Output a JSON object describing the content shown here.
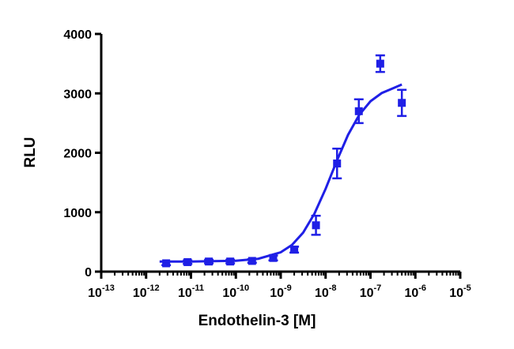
{
  "chart_data": {
    "type": "scatter",
    "xlabel": "Endothelin-3 [M]",
    "ylabel": "RLU",
    "log_x": true,
    "xlim": [
      1e-13,
      1e-05
    ],
    "xticks": [
      {
        "value": 1e-13,
        "label": "10-13"
      },
      {
        "value": 1e-12,
        "label": "10-12"
      },
      {
        "value": 1e-11,
        "label": "10-11"
      },
      {
        "value": 1e-10,
        "label": "10-10"
      },
      {
        "value": 1e-09,
        "label": "10-9"
      },
      {
        "value": 1e-08,
        "label": "10-8"
      },
      {
        "value": 1e-07,
        "label": "10-7"
      },
      {
        "value": 1e-06,
        "label": "10-6"
      },
      {
        "value": 1e-05,
        "label": "10-5"
      }
    ],
    "ylim": [
      0,
      4000
    ],
    "yticks": [
      0,
      1000,
      2000,
      3000,
      4000
    ],
    "series": [
      {
        "color": "#1f1fe6",
        "marker": "square",
        "x": [
          2.8e-12,
          8.4e-12,
          2.5e-11,
          7.5e-11,
          2.3e-10,
          6.8e-10,
          2e-09,
          6.1e-09,
          1.8e-08,
          5.5e-08,
          1.65e-07,
          5e-07
        ],
        "values": [
          140,
          160,
          170,
          170,
          180,
          230,
          370,
          780,
          1820,
          2700,
          3500,
          2840
        ],
        "errors": [
          30,
          30,
          30,
          30,
          30,
          40,
          50,
          160,
          250,
          200,
          140,
          220
        ]
      },
      {
        "color": "#1f1fe6",
        "line": true,
        "x": [
          2e-12,
          1e-11,
          1e-10,
          3.16e-10,
          1e-09,
          1.78e-09,
          3.16e-09,
          5.62e-09,
          1e-08,
          1.78e-08,
          3.16e-08,
          5.62e-08,
          1e-07,
          1.78e-07,
          3.16e-07,
          5e-07
        ],
        "values": [
          170,
          170,
          183,
          216,
          325,
          449,
          656,
          973,
          1393,
          1865,
          2301,
          2639,
          2867,
          3005,
          3085,
          3150
        ]
      }
    ]
  }
}
